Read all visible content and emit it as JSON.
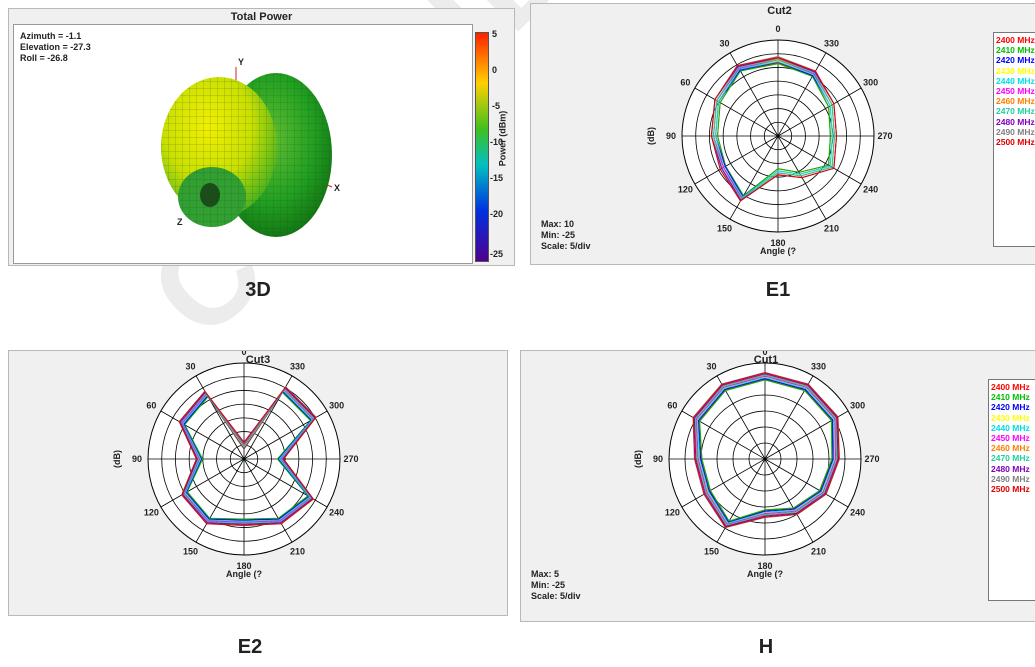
{
  "watermark": "CONFIDENTIAL",
  "panel_3d": {
    "caption": "3D",
    "title": "Total Power",
    "azimuth": "Azimuth = -1.1",
    "elevation": "Elevation = -27.3",
    "roll": "Roll = -26.8",
    "axis_x": "X",
    "axis_y": "Y",
    "axis_z": "Z",
    "colorbar_label": "Power (dBm)",
    "colorbar_ticks": [
      "5",
      "0",
      "-5",
      "-10",
      "-15",
      "-20",
      "-25"
    ],
    "colors": [
      "#ff2000",
      "#ffd000",
      "#40c020",
      "#00c0c0",
      "#0030e0",
      "#500090"
    ]
  },
  "common": {
    "angle_labels": [
      "0",
      "330",
      "300",
      "270",
      "240",
      "210",
      "180",
      "150",
      "120",
      "90",
      "60",
      "30"
    ],
    "ylabel": "(dB)",
    "xlabel": "Angle (?",
    "legend": [
      {
        "label": "2400 MHz",
        "color": "#ff0000"
      },
      {
        "label": "2410 MHz",
        "color": "#00c000"
      },
      {
        "label": "2420 MHz",
        "color": "#0000ff"
      },
      {
        "label": "2430 MHz",
        "color": "#ffff00"
      },
      {
        "label": "2440 MHz",
        "color": "#00e0e0"
      },
      {
        "label": "2450 MHz",
        "color": "#ff00ff"
      },
      {
        "label": "2460 MHz",
        "color": "#ff8000"
      },
      {
        "label": "2470 MHz",
        "color": "#20d0a0"
      },
      {
        "label": "2480 MHz",
        "color": "#8000c0"
      },
      {
        "label": "2490 MHz",
        "color": "#808080"
      },
      {
        "label": "2500 MHz",
        "color": "#e00000"
      }
    ]
  },
  "e1": {
    "caption": "E1",
    "title": "Cut2",
    "max": "Max: 10",
    "min": "Min: -25",
    "scale": "Scale: 5/div"
  },
  "e2": {
    "caption": "E2",
    "title": "Cut3"
  },
  "h": {
    "caption": "H",
    "title": "Cut1",
    "max": "Max: 5",
    "min": "Min: -25",
    "scale": "Scale: 5/div"
  },
  "chart_data": [
    {
      "name": "E1",
      "type": "polar",
      "title": "Cut2",
      "rlim": [
        -25,
        10
      ],
      "scale_per_div": 5,
      "angles_deg": [
        0,
        30,
        60,
        90,
        120,
        150,
        180,
        210,
        240,
        270,
        300,
        330
      ],
      "series": [
        {
          "name": "2400 MHz",
          "values": [
            3.1,
            3.8,
            0.7,
            -1.6,
            -1.6,
            1.5,
            -11.7,
            -8.3,
            -2.3,
            -4.5,
            -2.3,
            1.5
          ]
        },
        {
          "name": "2450 MHz",
          "values": [
            2.5,
            3.5,
            0.5,
            -1.8,
            -1.8,
            1.2,
            -12,
            -8.6,
            -2.6,
            -4.8,
            -2.6,
            1.2
          ]
        },
        {
          "name": "2500 MHz",
          "values": [
            2.9,
            3.6,
            0.9,
            -1.4,
            -1.9,
            1.4,
            -11.4,
            -8.1,
            -2.1,
            -4.3,
            -2.1,
            1.3
          ]
        }
      ]
    },
    {
      "name": "E2",
      "type": "polar",
      "title": "Cut3",
      "rlim": [
        -25,
        10
      ],
      "scale_per_div": 5,
      "angles_deg": [
        0,
        30,
        60,
        90,
        120,
        150,
        180,
        210,
        240,
        270,
        300,
        330
      ],
      "series": [
        {
          "name": "2400 MHz",
          "values": [
            -20,
            2.7,
            1.4,
            -8.5,
            0.4,
            1.4,
            -1.6,
            1.4,
            3.4,
            -11.4,
            4.5,
            4.5
          ]
        },
        {
          "name": "2450 MHz",
          "values": [
            -20,
            2.3,
            1.1,
            -8.8,
            0,
            1.1,
            -2.0,
            1.1,
            3.0,
            -11.7,
            4.1,
            4.1
          ]
        },
        {
          "name": "2500 MHz",
          "values": [
            -20,
            2.5,
            1.2,
            -8.6,
            0.2,
            1.2,
            -1.8,
            1.2,
            3.2,
            -11.5,
            4.3,
            4.3
          ]
        }
      ]
    },
    {
      "name": "H",
      "type": "polar",
      "title": "Cut1",
      "rlim": [
        -25,
        5
      ],
      "scale_per_div": 5,
      "angles_deg": [
        0,
        30,
        60,
        90,
        120,
        150,
        180,
        210,
        240,
        270,
        300,
        330
      ],
      "series": [
        {
          "name": "2400 MHz",
          "values": [
            1.2,
            1.2,
            0.1,
            -3.8,
            -3.8,
            -1.1,
            -7.6,
            -5.8,
            -3.8,
            -2.6,
            0.5,
            1.2
          ]
        },
        {
          "name": "2450 MHz",
          "values": [
            0.8,
            0.8,
            -0.3,
            -4.2,
            -4.2,
            -1.5,
            -8.0,
            -6.2,
            -4.2,
            -3.0,
            0.1,
            0.8
          ]
        },
        {
          "name": "2500 MHz",
          "values": [
            1.0,
            1.0,
            -0.1,
            -4.0,
            -4.0,
            -1.3,
            -7.8,
            -6.0,
            -4.0,
            -2.8,
            0.3,
            1.0
          ]
        }
      ]
    }
  ]
}
